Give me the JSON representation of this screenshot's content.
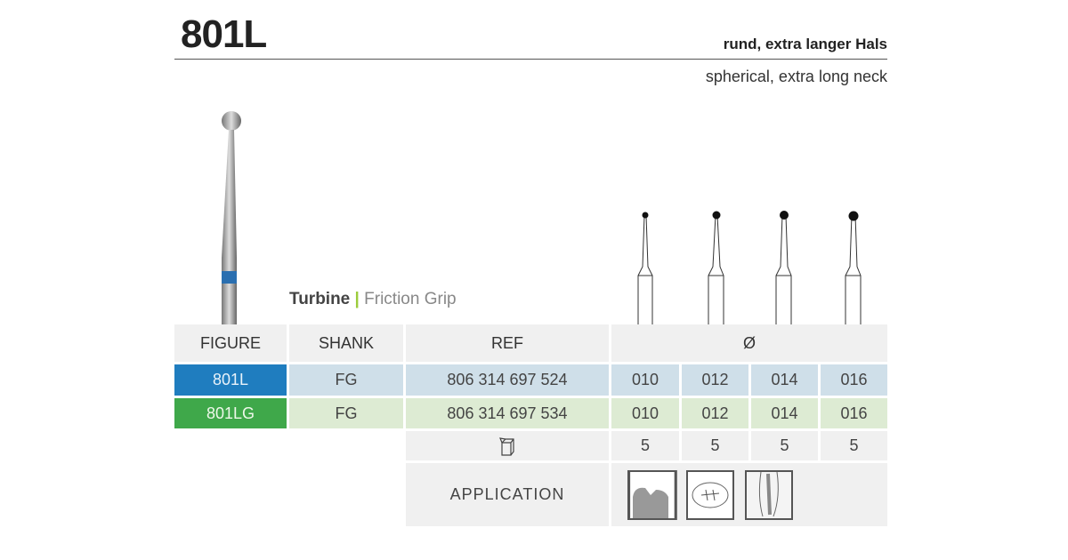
{
  "title": "801L",
  "subtitle_de": "rund, extra langer Hals",
  "subtitle_en": "spherical, extra long neck",
  "caption": {
    "bold": "Turbine",
    "separator": "|",
    "rest": "Friction Grip"
  },
  "colors": {
    "blue": "#1f7dbf",
    "green": "#3fa84a",
    "blue_row": "#cfdfe9",
    "green_row": "#ddebd3",
    "accent_bar": "#9ccc3c"
  },
  "table": {
    "headers": {
      "figure": "FIGURE",
      "shank": "SHANK",
      "ref": "REF",
      "diameter": "Ø"
    },
    "rows": [
      {
        "figure": "801L",
        "shank": "FG",
        "ref": "806 314 697 524",
        "sizes": [
          "010",
          "012",
          "014",
          "016"
        ]
      },
      {
        "figure": "801LG",
        "shank": "FG",
        "ref": "806 314 697 534",
        "sizes": [
          "010",
          "012",
          "014",
          "016"
        ]
      }
    ],
    "pack_icon": "package-box-icon",
    "pack": [
      "5",
      "5",
      "5",
      "5"
    ],
    "application_label": "APPLICATION",
    "application_icons": [
      "cavity-preparation-icon",
      "occlusal-fissure-icon",
      "root-canal-icon"
    ]
  }
}
